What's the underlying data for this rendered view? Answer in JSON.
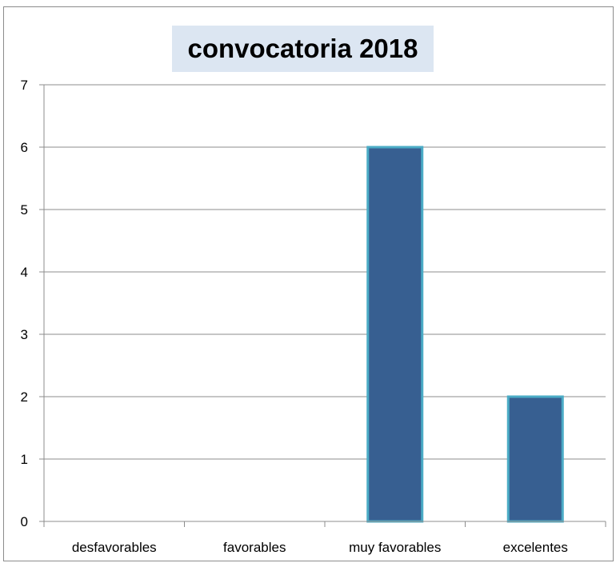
{
  "chart_data": {
    "type": "bar",
    "title": "convocatoria 2018",
    "categories": [
      "desfavorables",
      "favorables",
      "muy favorables",
      "excelentes"
    ],
    "values": [
      0,
      0,
      6,
      2
    ],
    "ylim": [
      0,
      7
    ],
    "yticks": [
      0,
      1,
      2,
      3,
      4,
      5,
      6,
      7
    ],
    "grid": true,
    "legend": "none",
    "colors": {
      "bar_fill": "#375f91",
      "bar_border": "#4bacc6",
      "grid": "#8c8c8c"
    }
  }
}
